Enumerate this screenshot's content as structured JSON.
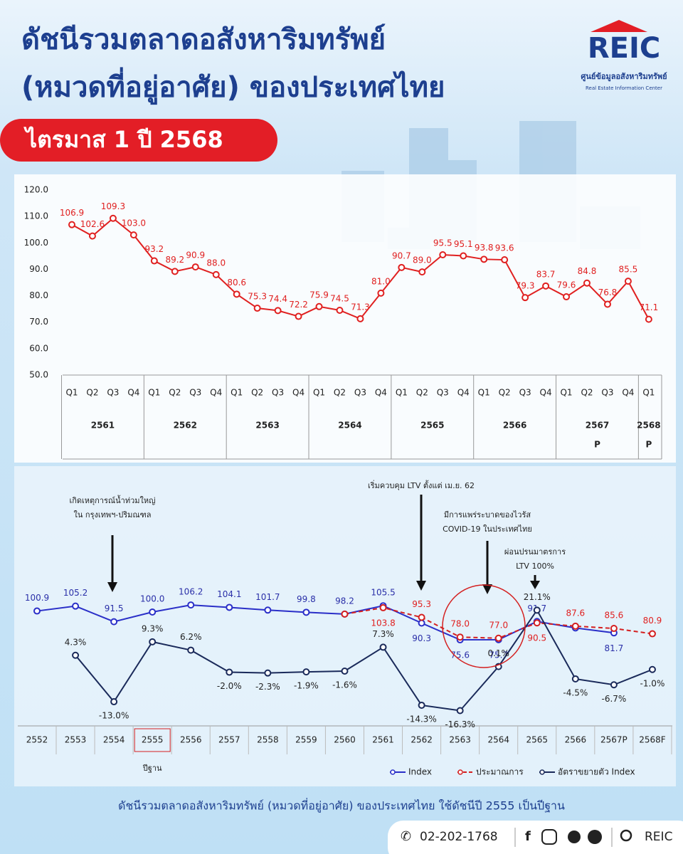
{
  "header": {
    "title_line1": "ดัชนีรวมตลาดอสังหาริมทรัพย์",
    "title_line2": "(หมวดที่อยู่อาศัย) ของประเทศไทย",
    "period": "ไตรมาส 1 ปี 2568",
    "logo": "REIC",
    "logo_th": "ศูนย์ข้อมูลอสังหาริมทรัพย์",
    "logo_en": "Real Estate Information Center"
  },
  "chart_data": [
    {
      "type": "line",
      "color": "#e02020",
      "groups": [
        {
          "label": "2561",
          "categories": [
            "Q1",
            "Q2",
            "Q3",
            "Q4"
          ]
        },
        {
          "label": "2562",
          "categories": [
            "Q1",
            "Q2",
            "Q3",
            "Q4"
          ]
        },
        {
          "label": "2563",
          "categories": [
            "Q1",
            "Q2",
            "Q3",
            "Q4"
          ]
        },
        {
          "label": "2564",
          "categories": [
            "Q1",
            "Q2",
            "Q3",
            "Q4"
          ]
        },
        {
          "label": "2565",
          "categories": [
            "Q1",
            "Q2",
            "Q3",
            "Q4"
          ]
        },
        {
          "label": "2566",
          "categories": [
            "Q1",
            "Q2",
            "Q3",
            "Q4"
          ]
        },
        {
          "label": "2567",
          "note": "P",
          "categories": [
            "Q1",
            "Q2",
            "Q3",
            "Q4"
          ]
        },
        {
          "label": "2568",
          "note": "P",
          "categories": [
            "Q1"
          ]
        }
      ],
      "values": [
        106.9,
        102.6,
        109.3,
        103.0,
        93.2,
        89.2,
        90.9,
        88.0,
        80.6,
        75.3,
        74.4,
        72.2,
        75.9,
        74.5,
        71.3,
        81.0,
        90.7,
        89.0,
        95.5,
        95.1,
        93.8,
        93.6,
        79.3,
        83.7,
        79.6,
        84.8,
        76.8,
        85.5,
        71.1
      ],
      "value_labels": [
        "106.9",
        "102.6",
        "109.3",
        "103.0",
        "93.2",
        "89.2",
        "90.9",
        "88.0",
        "80.6",
        "75.3",
        "74.4",
        "72.2",
        "75.9",
        "74.5",
        "71.3",
        "81.0",
        "90.7",
        "89.0",
        "95.5",
        "95.1",
        "93.8",
        "93.6",
        "79.3",
        "83.7",
        "79.6",
        "84.8",
        "76.8",
        "85.5",
        "71.1"
      ],
      "ylim": [
        50,
        120
      ],
      "yticks": [
        {
          "value": 50,
          "label": "50.0"
        },
        {
          "value": 60,
          "label": "60.0"
        },
        {
          "value": 70,
          "label": "70.0"
        },
        {
          "value": 80,
          "label": "80.0"
        },
        {
          "value": 90,
          "label": "90.0"
        },
        {
          "value": 100,
          "label": "100.0"
        },
        {
          "value": 110,
          "label": "110.0"
        },
        {
          "value": 120,
          "label": "120.0"
        }
      ],
      "grid": false
    },
    {
      "type": "line",
      "categories": [
        "2552",
        "2553",
        "2554",
        "2555",
        "2556",
        "2557",
        "2558",
        "2559",
        "2560",
        "2561",
        "2562",
        "2563",
        "2564",
        "2565",
        "2566",
        "2567P",
        "2568F"
      ],
      "base_year_label": "ปีฐาน",
      "ylim": [
        0,
        125
      ],
      "y2lim": [
        -22,
        31
      ],
      "series": [
        {
          "name": "Index",
          "color": "#2a2fc8",
          "style": "solid",
          "values": [
            100.9,
            105.2,
            91.5,
            100.0,
            106.2,
            104.1,
            101.7,
            99.8,
            98.2,
            105.5,
            90.3,
            75.6,
            75.7,
            91.7,
            86.0,
            81.7,
            null
          ],
          "value_labels": [
            "100.9",
            "105.2",
            "91.5",
            "100.0",
            "106.2",
            "104.1",
            "101.7",
            "99.8",
            "98.2",
            "105.5",
            "90.3",
            "75.6",
            "75.7",
            "91.7",
            null,
            "81.7",
            null
          ]
        },
        {
          "name": "ประมาณการ",
          "color": "#d42020",
          "style": "dashed",
          "values": [
            null,
            null,
            null,
            null,
            null,
            null,
            null,
            null,
            98.2,
            103.8,
            95.3,
            78.0,
            77.0,
            90.5,
            87.6,
            85.6,
            80.9
          ],
          "value_labels": [
            null,
            null,
            null,
            null,
            null,
            null,
            null,
            null,
            null,
            "103.8",
            "95.3",
            "78.0",
            "77.0",
            "90.5",
            "87.6",
            "85.6",
            "80.9"
          ]
        },
        {
          "name": "อัตราขยายตัว Index",
          "color": "#1a2a5a",
          "style": "solid",
          "axis": "y2",
          "values": [
            null,
            4.3,
            -13.0,
            9.3,
            6.2,
            -2.0,
            -2.3,
            -1.9,
            -1.6,
            7.3,
            -14.3,
            -16.3,
            0.1,
            21.1,
            -4.5,
            -6.7,
            -1.0
          ],
          "value_labels": [
            null,
            "4.3%",
            "-13.0%",
            "9.3%",
            "6.2%",
            "-2.0%",
            "-2.3%",
            "-1.9%",
            "-1.6%",
            "7.3%",
            "-14.3%",
            "-16.3%",
            "0.1%",
            "21.1%",
            "-4.5%",
            "-6.7%",
            "-1.0%"
          ]
        }
      ],
      "annotations": [
        "เกิดเหตุการณ์น้ำท่วมใหญ่",
        "ใน กรุงเทพฯ-ปริมณฑล",
        "เริ่มควบคุม LTV ตั้งแต่ เม.ย. 62",
        "มีการแพร่ระบาดของไวรัส",
        "COVID-19 ในประเทศไทย",
        "ผ่อนปรนมาตรการ",
        "LTV 100%"
      ]
    }
  ],
  "footer": {
    "caption": "ดัชนีรวมตลาดอสังหาริมทรัพย์ (หมวดที่อยู่อาศัย) ของประเทศไทย ใช้ดัชนีปี 2555 เป็นปีฐาน",
    "phone": "02-202-1768",
    "search": "REIC"
  }
}
